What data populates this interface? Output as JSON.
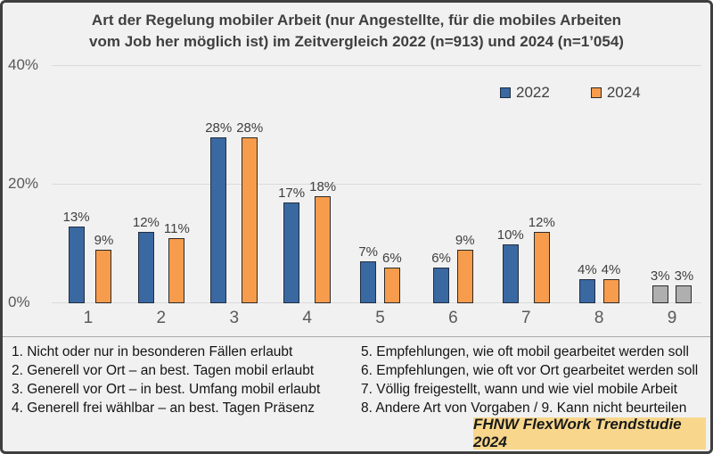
{
  "chart_data": {
    "type": "bar",
    "title": "Art der Regelung mobiler Arbeit (nur Angestellte, für die mobiles Arbeiten\nvom Job her möglich ist) im Zeitvergleich 2022 (n=913) und 2024 (n=1’054)",
    "categories": [
      "1",
      "2",
      "3",
      "4",
      "5",
      "6",
      "7",
      "8",
      "9"
    ],
    "series": [
      {
        "name": "2022",
        "fill": "#3A68A1",
        "edge": "#1F2F44",
        "values": [
          13,
          12,
          28,
          17,
          7,
          6,
          10,
          4,
          3
        ]
      },
      {
        "name": "2024",
        "fill": "#F79C4C",
        "edge": "#2B2B2B",
        "values": [
          9,
          11,
          28,
          18,
          6,
          9,
          12,
          4,
          3
        ]
      }
    ],
    "gray_category": "9",
    "gray_fill": "#AFAFAF",
    "gray_edge": "#2B2B2B",
    "value_suffix": "%",
    "ylim": [
      0,
      40
    ],
    "yticks": [
      {
        "label": "0%",
        "value": 0
      },
      {
        "label": "20%",
        "value": 20
      },
      {
        "label": "40%",
        "value": 40
      }
    ],
    "grid": true,
    "legend_position": "top-right",
    "xlabel": "",
    "ylabel": ""
  },
  "footnotes": {
    "left": [
      "1. Nicht oder nur in besonderen Fällen erlaubt",
      "2. Generell vor Ort – an best. Tagen mobil erlaubt",
      "3. Generell vor Ort – in best. Umfang mobil erlaubt",
      "4. Generell frei wählbar – an best. Tagen Präsenz"
    ],
    "right": [
      "5. Empfehlungen, wie oft mobil gearbeitet werden soll",
      "6. Empfehlungen, wie oft vor Ort gearbeitet werden soll",
      "7. Völlig freigestellt, wann und wie viel mobile Arbeit",
      "8. Andere Art von Vorgaben / 9. Kann nicht beurteilen"
    ]
  },
  "footer": {
    "label": "FHNW FlexWork Trendstudie 2024",
    "background": "#F8D78C"
  },
  "colors": {
    "background": "#F1F1F1",
    "frame_border": "#3F3F3F",
    "gridline": "#DADADA",
    "divider": "#A9A9A9",
    "title_text": "#3F3F3F",
    "axis_text": "#595959",
    "value_text": "#3F3F3F",
    "footnote_text": "#141414"
  }
}
